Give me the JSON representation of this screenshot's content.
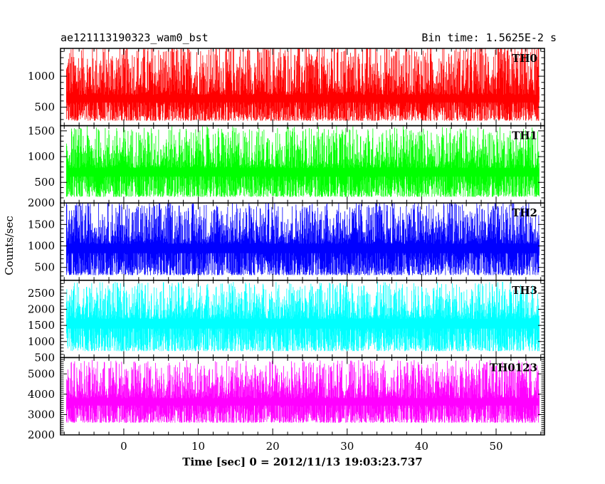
{
  "header": {
    "title": "ae121113190323_wam0_bst",
    "bin_time": "Bin time: 1.5625E-2 s"
  },
  "chart_data": {
    "type": "line",
    "xlabel": "Time [sec] 0 = 2012/11/13 19:03:23.737",
    "ylabel": "Counts/sec",
    "xlim": [
      -8.5,
      56.5
    ],
    "x_data_range": [
      -7.7,
      55.8
    ],
    "xticks": [
      0,
      10,
      20,
      30,
      40,
      50
    ],
    "panels": [
      {
        "name": "TH0",
        "color": "#ff0000",
        "ylim": [
          200,
          1450
        ],
        "yticks": [
          500,
          1000
        ],
        "low": 280,
        "base": 700,
        "peak": 1500
      },
      {
        "name": "TH1",
        "color": "#00ff00",
        "ylim": [
          100,
          1600
        ],
        "yticks": [
          500,
          1000,
          1500
        ],
        "low": 220,
        "base": 780,
        "peak": 1550
      },
      {
        "name": "TH2",
        "color": "#0000ff",
        "ylim": [
          200,
          2000
        ],
        "yticks": [
          500,
          1000,
          1500,
          2000
        ],
        "low": 320,
        "base": 1050,
        "peak": 2000
      },
      {
        "name": "TH3",
        "color": "#00ffff",
        "ylim": [
          500,
          2900
        ],
        "yticks": [
          500,
          1000,
          1500,
          2000,
          2500
        ],
        "low": 700,
        "base": 1700,
        "peak": 2800
      },
      {
        "name": "TH0123",
        "color": "#ff00ff",
        "ylim": [
          2000,
          5800
        ],
        "yticks": [
          2000,
          3000,
          4000,
          5000
        ],
        "low": 2600,
        "base": 3800,
        "peak": 5600
      }
    ]
  }
}
